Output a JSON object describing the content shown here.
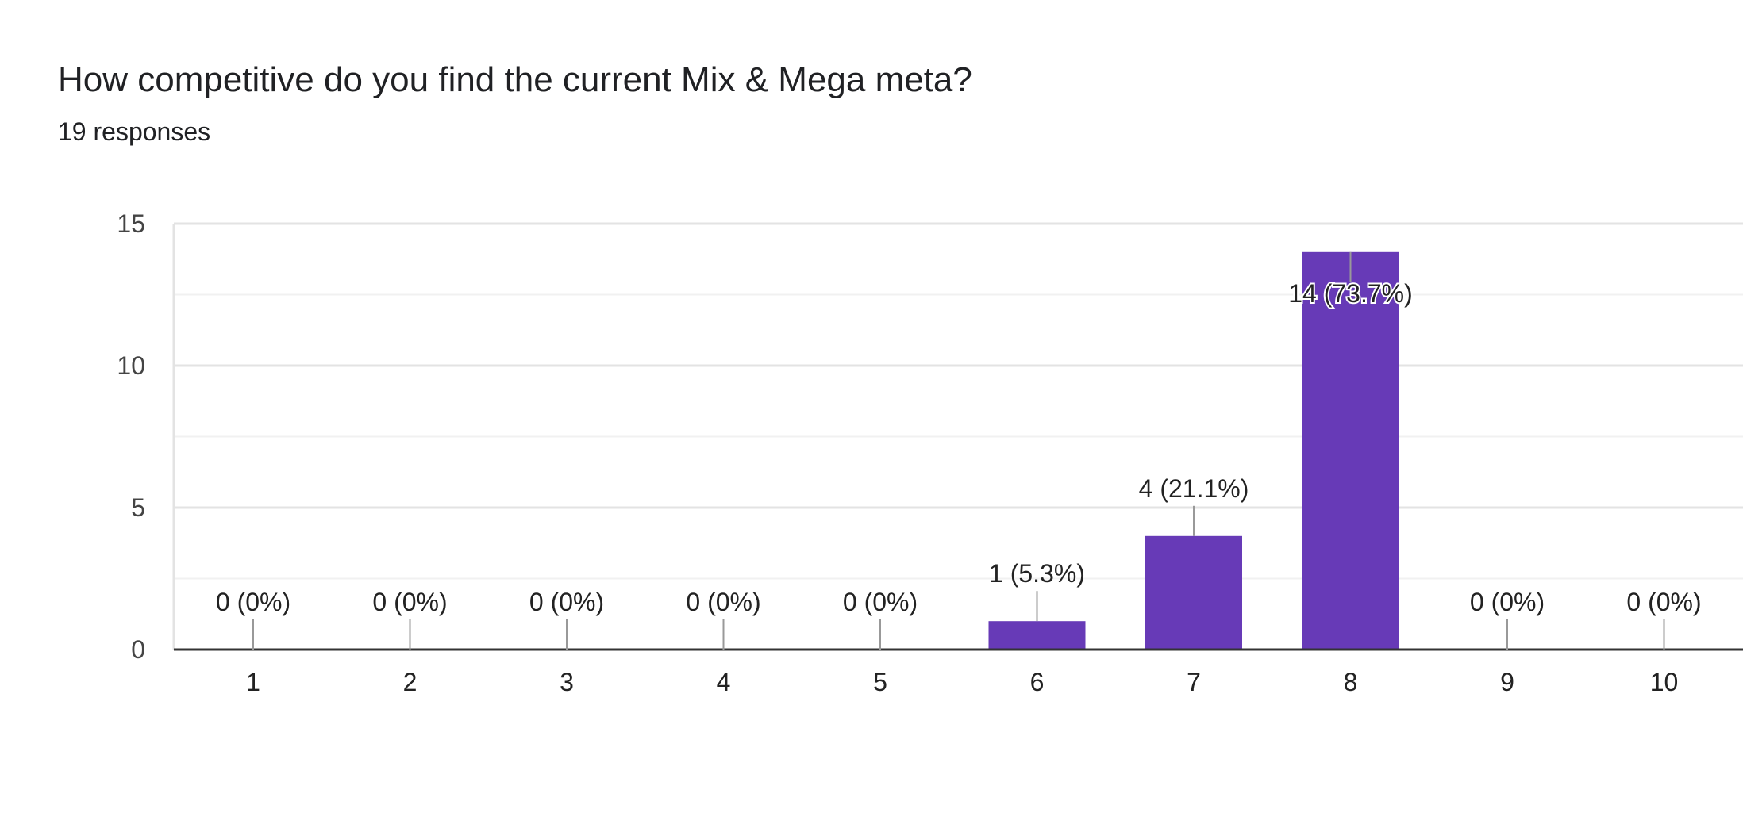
{
  "question": {
    "title": "How competitive do you find the current Mix & Mega meta?",
    "responses": "19 responses"
  },
  "colors": {
    "bar": "#673ab7",
    "grid_major": "#e3e3e3",
    "grid_minor": "#f1f1f1",
    "axis": "#333333",
    "label_line": "#999999"
  },
  "chart_data": {
    "type": "bar",
    "categories": [
      "1",
      "2",
      "3",
      "4",
      "5",
      "6",
      "7",
      "8",
      "9",
      "10"
    ],
    "values": [
      0,
      0,
      0,
      0,
      0,
      1,
      4,
      14,
      0,
      0
    ],
    "data_labels": [
      "0 (0%)",
      "0 (0%)",
      "0 (0%)",
      "0 (0%)",
      "0 (0%)",
      "1 (5.3%)",
      "4 (21.1%)",
      "14 (73.7%)",
      "0 (0%)",
      "0 (0%)"
    ],
    "ylim": [
      0,
      15
    ],
    "yticks": [
      0,
      5,
      10,
      15
    ],
    "grid": true,
    "xlabel": "",
    "ylabel": ""
  }
}
